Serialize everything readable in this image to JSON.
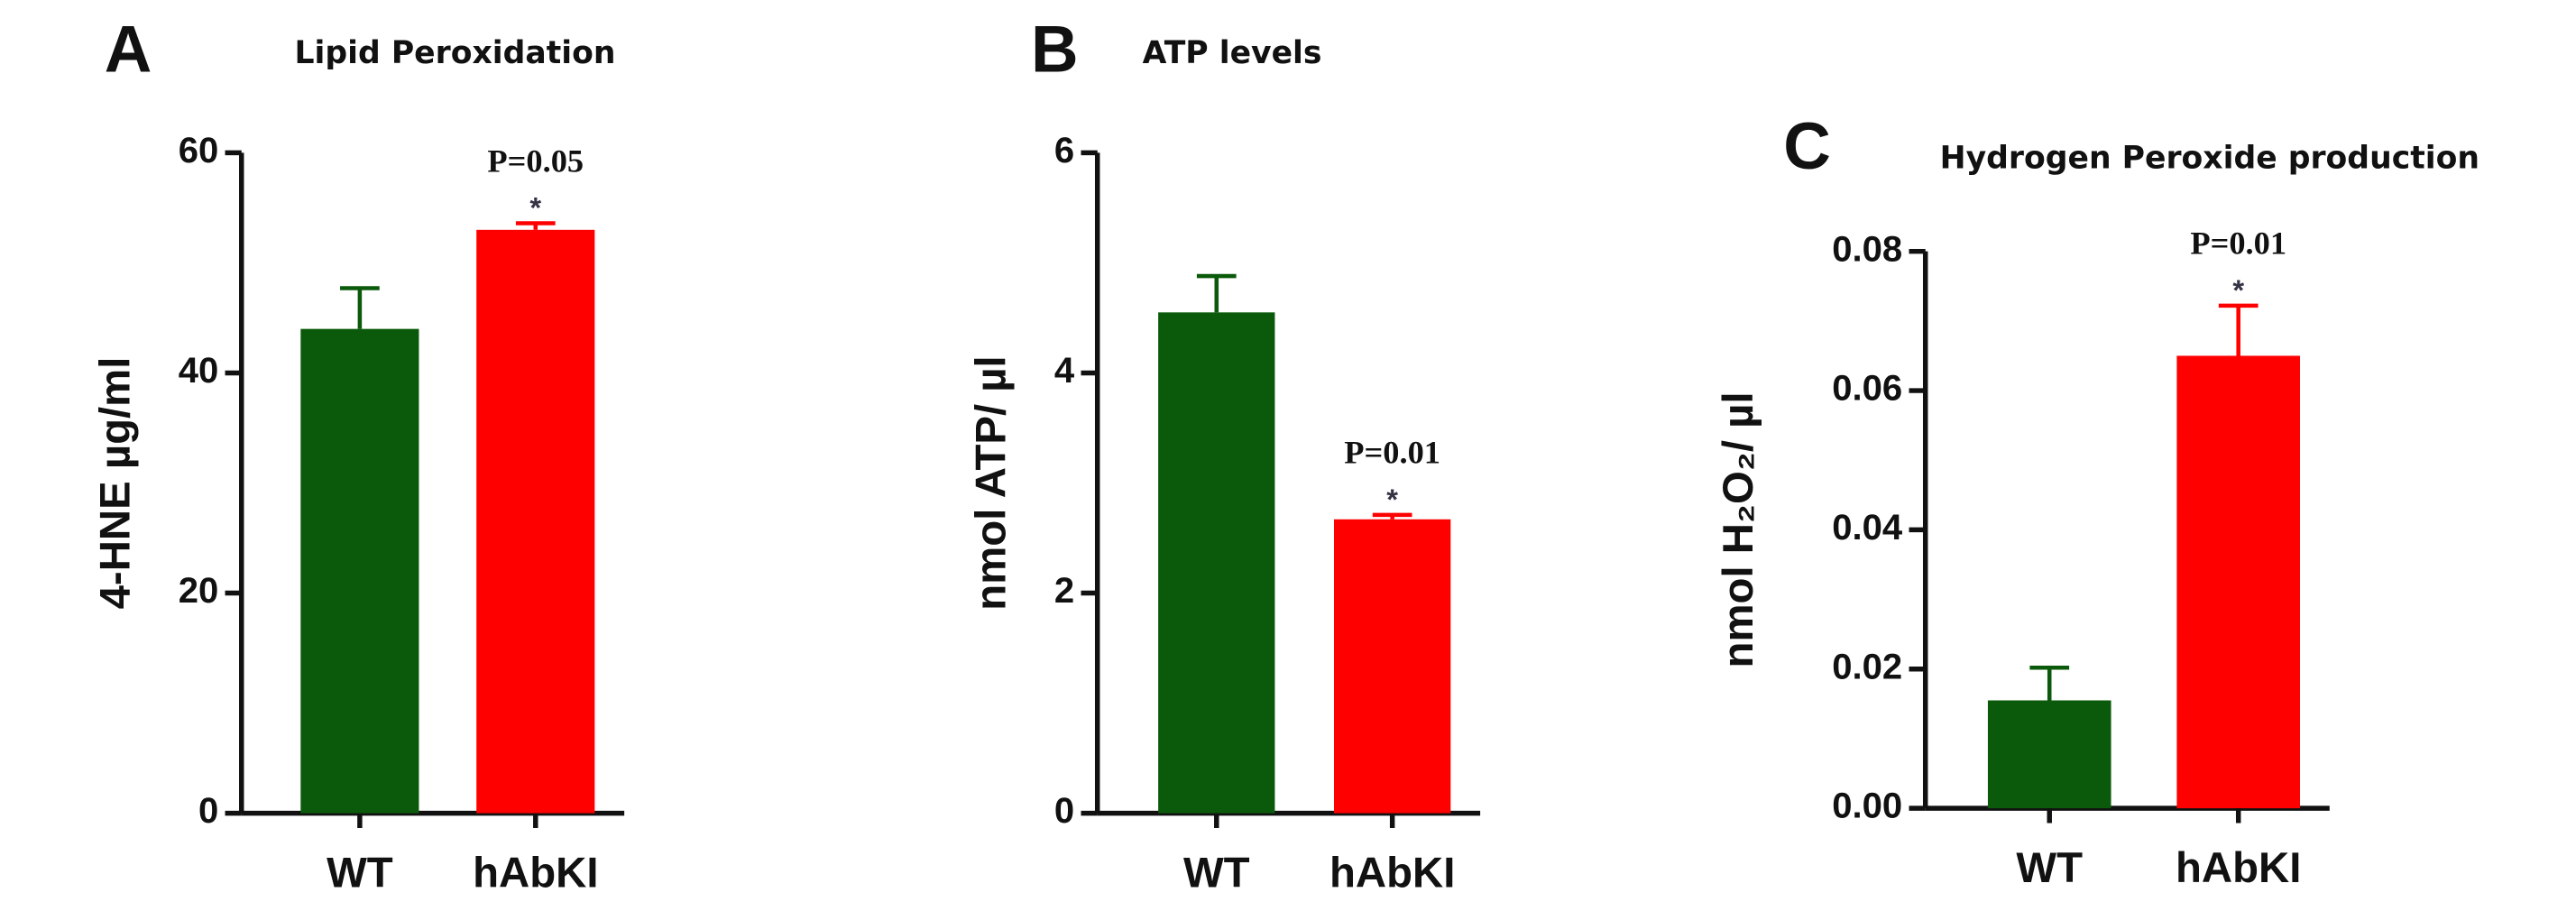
{
  "chart_data": [
    {
      "type": "bar",
      "panel_label": "A",
      "title": "Lipid Peroxidation",
      "y_label": "4-HNE µg/ml",
      "categories": [
        "WT",
        "hAbKI"
      ],
      "values": [
        44,
        53
      ],
      "errors": [
        3.7,
        0.6
      ],
      "colors": [
        "#0b5a0b",
        "#ff0000"
      ],
      "ylim": [
        0,
        60
      ],
      "yticks": [
        0,
        20,
        40,
        60
      ],
      "significance": "P=0.05",
      "marker": "*"
    },
    {
      "type": "bar",
      "panel_label": "B",
      "title": "ATP levels",
      "y_label": "nmol ATP/ µl",
      "categories": [
        "WT",
        "hAbKI"
      ],
      "values": [
        4.55,
        2.67
      ],
      "errors": [
        0.33,
        0.04
      ],
      "colors": [
        "#0b5a0b",
        "#ff0000"
      ],
      "ylim": [
        0,
        6
      ],
      "yticks": [
        0,
        2,
        4,
        6
      ],
      "significance": "P=0.01",
      "marker": "*"
    },
    {
      "type": "bar",
      "panel_label": "C",
      "title": "Hydrogen Peroxide production",
      "y_label": "nmol H₂O₂/ µl",
      "categories": [
        "WT",
        "hAbKI"
      ],
      "values": [
        0.0155,
        0.065
      ],
      "errors": [
        0.0047,
        0.0072
      ],
      "colors": [
        "#0b5a0b",
        "#ff0000"
      ],
      "ylim": [
        0,
        0.08
      ],
      "yticks": [
        {
          "value": 0,
          "label": "0.00"
        },
        {
          "value": 0.02,
          "label": "0.02"
        },
        {
          "value": 0.04,
          "label": "0.04"
        },
        {
          "value": 0.06,
          "label": "0.06"
        },
        {
          "value": 0.08,
          "label": "0.08"
        }
      ],
      "significance": "P=0.01",
      "marker": "*"
    }
  ]
}
